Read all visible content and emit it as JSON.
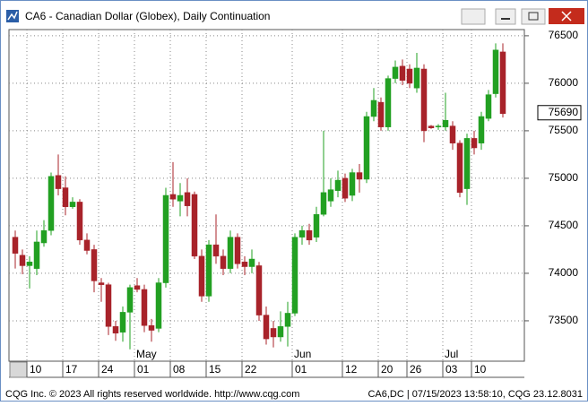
{
  "window": {
    "title": "CA6 - Canadian Dollar (Globex), Daily Continuation"
  },
  "footer": {
    "left": "CQG Inc. © 2023 All rights reserved worldwide.  http://www.cqg.com",
    "right": "CA6,DC | 07/15/2023 13:58:10, CQG 23.12.8031"
  },
  "chart_data": {
    "type": "candlestick",
    "categories": [
      null,
      null,
      "10",
      null,
      null,
      null,
      null,
      "17",
      null,
      null,
      null,
      null,
      "24",
      null,
      null,
      null,
      null,
      "01",
      null,
      null,
      null,
      null,
      "08",
      null,
      null,
      null,
      null,
      "15",
      null,
      null,
      null,
      null,
      "22",
      null,
      null,
      null,
      null,
      null,
      null,
      "01",
      null,
      null,
      null,
      null,
      null,
      null,
      "12",
      null,
      null,
      null,
      null,
      "20",
      null,
      null,
      null,
      "26",
      null,
      null,
      null,
      null,
      "03",
      null,
      null,
      null,
      "10",
      null,
      null,
      null,
      null
    ],
    "month_labels": [
      null,
      null,
      null,
      null,
      null,
      null,
      null,
      null,
      null,
      null,
      null,
      null,
      null,
      null,
      null,
      null,
      null,
      "May",
      null,
      null,
      null,
      null,
      null,
      null,
      null,
      null,
      null,
      null,
      null,
      null,
      null,
      null,
      null,
      null,
      null,
      null,
      null,
      null,
      null,
      "Jun",
      null,
      null,
      null,
      null,
      null,
      null,
      null,
      null,
      null,
      null,
      null,
      null,
      null,
      null,
      null,
      null,
      null,
      null,
      null,
      null,
      "Jul",
      null,
      null,
      null,
      null,
      null,
      null,
      null,
      null
    ],
    "open": [
      74380,
      74190,
      74080,
      74050,
      74320,
      74450,
      75030,
      74900,
      74700,
      74750,
      74350,
      74250,
      73900,
      73880,
      73440,
      73380,
      73590,
      73870,
      73830,
      73450,
      73420,
      73900,
      74830,
      74760,
      74850,
      74830,
      74180,
      73760,
      74300,
      74180,
      74050,
      74380,
      74120,
      74070,
      74080,
      73560,
      73420,
      73330,
      73440,
      73580,
      74380,
      74450,
      74380,
      74620,
      74760,
      74870,
      75000,
      74820,
      75060,
      74990,
      75650,
      75800,
      75540,
      76050,
      76180,
      76150,
      75950,
      76150,
      75550,
      75540,
      75540,
      75550,
      75370,
      74890,
      75420,
      75370,
      75630,
      75890,
      76330
    ],
    "high": [
      74450,
      74250,
      74180,
      74450,
      74560,
      75060,
      75250,
      75020,
      74800,
      74780,
      74420,
      74300,
      73950,
      73900,
      73500,
      73650,
      73880,
      73950,
      73880,
      73520,
      73950,
      74900,
      75170,
      74950,
      75000,
      74860,
      74250,
      74350,
      74620,
      74250,
      74450,
      74420,
      74180,
      74250,
      74120,
      73650,
      73500,
      73600,
      73700,
      74420,
      74500,
      74520,
      74700,
      75500,
      75000,
      75080,
      75050,
      75100,
      75150,
      75700,
      75950,
      75850,
      76080,
      76240,
      76250,
      76200,
      76320,
      76200,
      75560,
      75570,
      75900,
      75600,
      75400,
      75470,
      75500,
      75700,
      75930,
      76420,
      76420
    ],
    "low": [
      74050,
      73990,
      73840,
      73980,
      74280,
      74400,
      74820,
      74610,
      74680,
      74300,
      74200,
      73800,
      73700,
      73350,
      73290,
      73280,
      73200,
      73800,
      73380,
      73280,
      73380,
      73850,
      74700,
      74600,
      74600,
      74150,
      73700,
      73700,
      74100,
      73980,
      74000,
      74050,
      73980,
      74000,
      73500,
      73250,
      73220,
      73280,
      73230,
      73550,
      74300,
      74300,
      74330,
      74600,
      74700,
      74800,
      74750,
      74760,
      74850,
      74950,
      75600,
      75500,
      75500,
      76000,
      75980,
      75950,
      75900,
      75380,
      75520,
      75510,
      75500,
      75300,
      74800,
      74720,
      75250,
      75300,
      75600,
      75850,
      75640
    ],
    "close": [
      74210,
      74080,
      74120,
      74330,
      74450,
      75020,
      74890,
      74700,
      74750,
      74350,
      74240,
      73920,
      73880,
      73440,
      73370,
      73590,
      73850,
      73830,
      73450,
      73400,
      73900,
      74820,
      74780,
      74820,
      74710,
      74180,
      73760,
      74300,
      74180,
      74050,
      74380,
      74100,
      74070,
      74150,
      73560,
      73310,
      73330,
      73440,
      73580,
      74380,
      74450,
      74350,
      74620,
      74850,
      74880,
      74980,
      74790,
      75060,
      74990,
      75650,
      75820,
      75540,
      76050,
      76170,
      76030,
      76000,
      76160,
      75500,
      75530,
      75550,
      75610,
      75370,
      74850,
      75420,
      75320,
      75650,
      75880,
      76350,
      75680
    ],
    "up_color": "#22a022",
    "down_color": "#a8232a",
    "ylim": [
      73075,
      76565
    ],
    "yticks": [
      73500,
      74000,
      74500,
      75000,
      75500,
      76000,
      76500
    ],
    "last_price": 75690,
    "grid": true
  }
}
